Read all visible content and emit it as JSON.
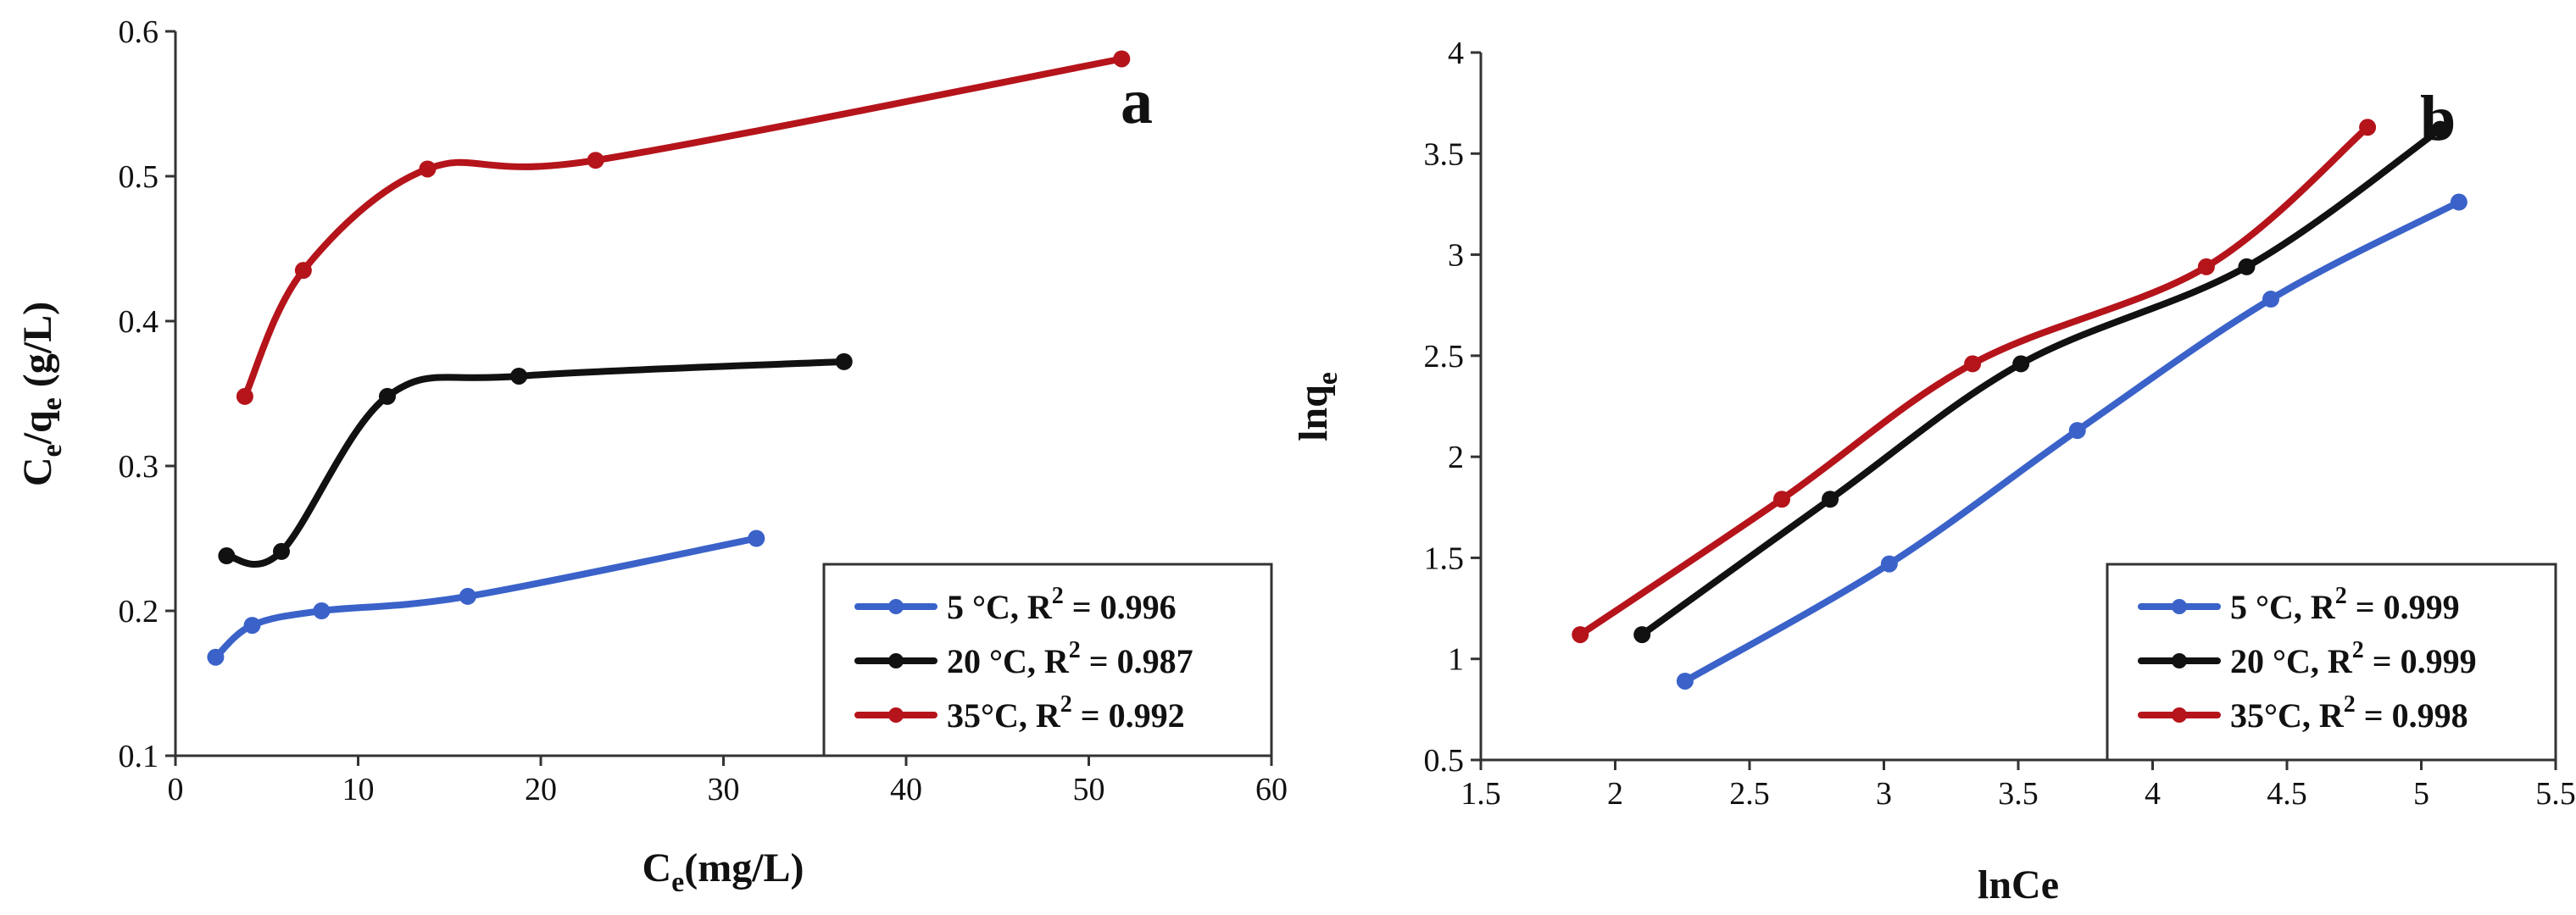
{
  "chart_data": [
    {
      "type": "line",
      "panel_label": "a",
      "xlabel_main": "C",
      "xlabel_sub": "e",
      "xlabel_rest": "(mg/L)",
      "ylabel_parts": [
        "C",
        "e",
        "/q",
        "e",
        " (g/L)"
      ],
      "xlim": [
        0,
        60
      ],
      "ylim": [
        0.1,
        0.6
      ],
      "xticks": [
        0,
        10,
        20,
        30,
        40,
        50,
        60
      ],
      "yticks": [
        0.1,
        0.2,
        0.3,
        0.4,
        0.5,
        0.6
      ],
      "xtick_labels": [
        "0",
        "10",
        "20",
        "30",
        "40",
        "50",
        "60"
      ],
      "ytick_labels": [
        "0.1",
        "0.2",
        "0.3",
        "0.4",
        "0.5",
        "0.6"
      ],
      "legend_position": "bottom-right",
      "series": [
        {
          "name": "5 °C",
          "r2_label": "5 °C,  R",
          "r2_value": " = 0.996",
          "color": "#3a62c9",
          "x": [
            2.2,
            4.2,
            8,
            16,
            31.8
          ],
          "y": [
            0.168,
            0.19,
            0.2,
            0.21,
            0.25
          ]
        },
        {
          "name": "20 °C",
          "r2_label": "20 °C, R",
          "r2_value": " = 0.987",
          "color": "#111111",
          "x": [
            2.8,
            5.8,
            11.6,
            18.8,
            36.6
          ],
          "y": [
            0.238,
            0.241,
            0.348,
            0.362,
            0.372
          ]
        },
        {
          "name": "35°C",
          "r2_label": "35°C, R",
          "r2_value": " = 0.992",
          "color": "#b5141b",
          "x": [
            3.8,
            7,
            13.8,
            23,
            51.8
          ],
          "y": [
            0.348,
            0.435,
            0.505,
            0.511,
            0.581
          ]
        }
      ]
    },
    {
      "type": "line",
      "panel_label": "b",
      "xlabel": "lnCe",
      "ylabel_main": "lnq",
      "ylabel_sub": "e",
      "xlim": [
        1.5,
        5.5
      ],
      "ylim": [
        0.5,
        4
      ],
      "xticks": [
        1.5,
        2,
        2.5,
        3,
        3.5,
        4,
        4.5,
        5,
        5.5
      ],
      "yticks": [
        0.5,
        1,
        1.5,
        2,
        2.5,
        3,
        3.5,
        4
      ],
      "xtick_labels": [
        "1.5",
        "2",
        "2.5",
        "3",
        "3.5",
        "4",
        "4.5",
        "5",
        "5.5"
      ],
      "ytick_labels": [
        "0.5",
        "1",
        "1.5",
        "2",
        "2.5",
        "3",
        "3.5",
        "4"
      ],
      "legend_position": "bottom-right",
      "series": [
        {
          "name": "5 °C",
          "r2_label": "5 °C,  R",
          "r2_value": " = 0.999",
          "color": "#3a62c9",
          "x": [
            2.26,
            3.02,
            3.72,
            4.44,
            5.14
          ],
          "y": [
            0.89,
            1.47,
            2.13,
            2.78,
            3.26
          ]
        },
        {
          "name": "20 °C",
          "r2_label": "20 °C, R",
          "r2_value": " = 0.999",
          "color": "#111111",
          "x": [
            2.1,
            2.8,
            3.51,
            4.35,
            5.07
          ],
          "y": [
            1.12,
            1.79,
            2.46,
            2.94,
            3.62
          ]
        },
        {
          "name": "35°C",
          "r2_label": "35°C, R",
          "r2_value": " = 0.998",
          "color": "#b5141b",
          "x": [
            1.87,
            2.62,
            3.33,
            4.2,
            4.8
          ],
          "y": [
            1.12,
            1.79,
            2.46,
            2.94,
            3.63
          ]
        }
      ]
    }
  ]
}
